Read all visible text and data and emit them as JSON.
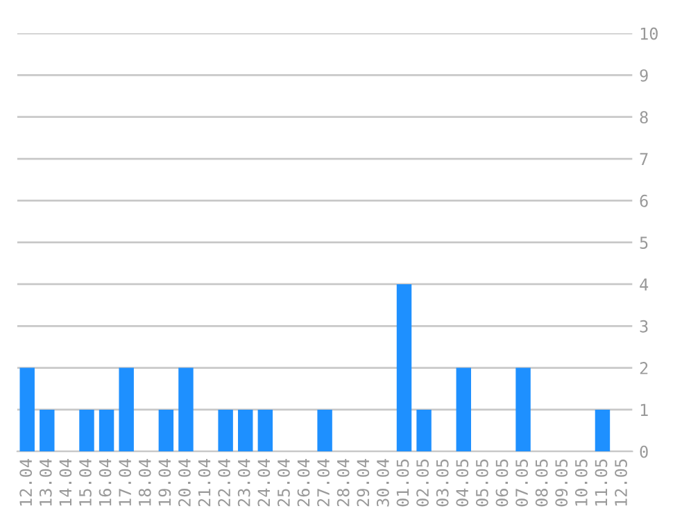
{
  "chart_data": {
    "type": "bar",
    "categories": [
      "12.04",
      "13.04",
      "14.04",
      "15.04",
      "16.04",
      "17.04",
      "18.04",
      "19.04",
      "20.04",
      "21.04",
      "22.04",
      "23.04",
      "24.04",
      "25.04",
      "26.04",
      "27.04",
      "28.04",
      "29.04",
      "30.04",
      "01.05",
      "02.05",
      "03.05",
      "04.05",
      "05.05",
      "06.05",
      "07.05",
      "08.05",
      "09.05",
      "10.05",
      "11.05",
      "12.05"
    ],
    "values": [
      2,
      1,
      0,
      1,
      1,
      2,
      0,
      1,
      2,
      0,
      1,
      1,
      1,
      0,
      0,
      1,
      0,
      0,
      0,
      4,
      1,
      0,
      2,
      0,
      0,
      2,
      0,
      0,
      0,
      1,
      0
    ],
    "color": "#1e90ff",
    "ylim": [
      0,
      10
    ],
    "yticks": [
      0,
      1,
      2,
      3,
      4,
      5,
      6,
      7,
      8,
      9,
      10
    ],
    "grid": "y"
  }
}
